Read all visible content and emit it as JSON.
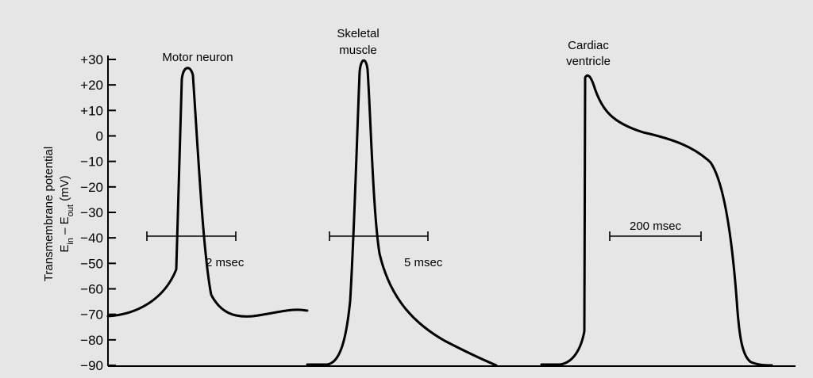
{
  "y_axis": {
    "label_line1": "Transmembrane potential",
    "label_line2_main": "E",
    "label_line2_sub_in": "in",
    "label_line2_mid": " – E",
    "label_line2_sub_out": "out",
    "label_line2_unit": " (mV)",
    "ticks": [
      "+30",
      "+20",
      "+10",
      "0",
      "−10",
      "−20",
      "−30",
      "−40",
      "−50",
      "−60",
      "−70",
      "−80",
      "−90"
    ],
    "range": [
      -90,
      30
    ]
  },
  "panels": [
    {
      "title_lines": [
        "Motor neuron"
      ],
      "scale_label": "2 msec",
      "scale_level": -40
    },
    {
      "title_lines": [
        "Skeletal",
        "muscle"
      ],
      "scale_label": "5 msec",
      "scale_level": -40
    },
    {
      "title_lines": [
        "Cardiac",
        "ventricle"
      ],
      "scale_label": "200 msec",
      "scale_level": -40
    }
  ]
}
